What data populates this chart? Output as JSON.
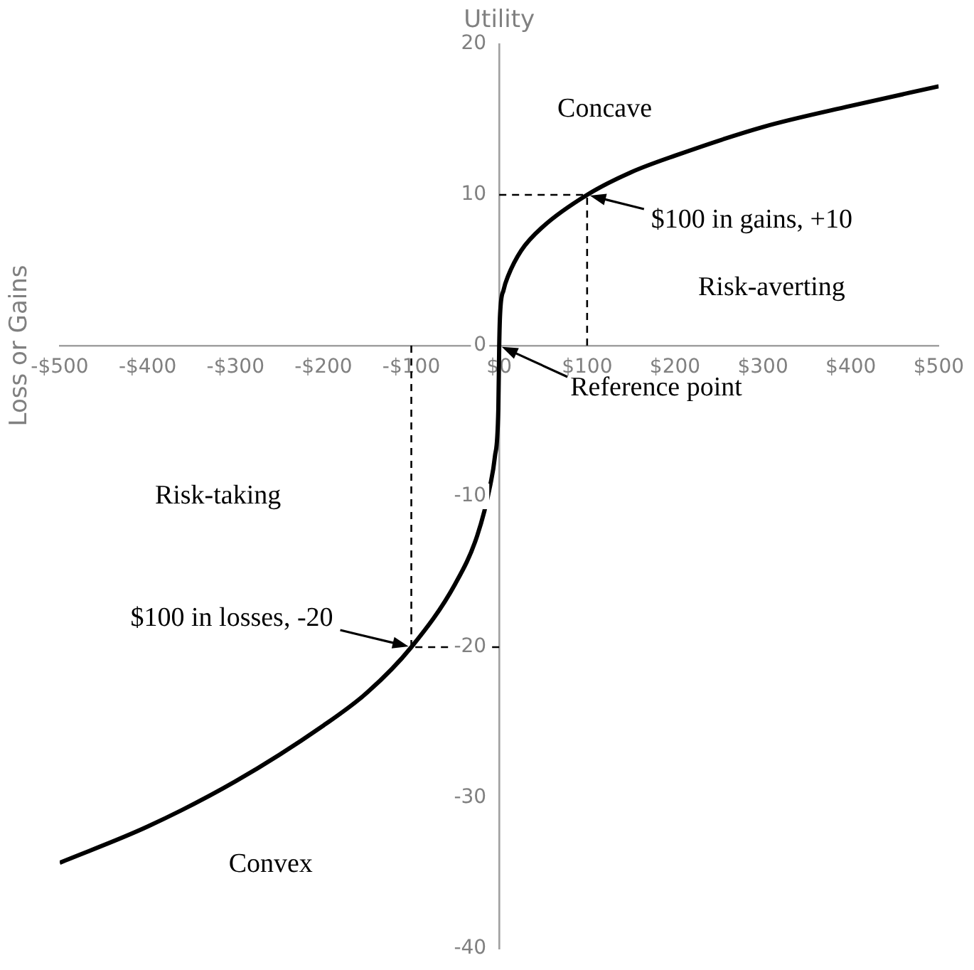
{
  "chart_data": {
    "type": "line",
    "xlabel": "Utility",
    "ylabel": "Loss or Gains",
    "x": [
      -500,
      -400,
      -300,
      -200,
      -150,
      -100,
      -50,
      -25,
      -10,
      -5,
      -1,
      0,
      1,
      5,
      10,
      25,
      50,
      100,
      150,
      200,
      300,
      400,
      500
    ],
    "series": [
      {
        "color": "#000000",
        "values": [
          -34.3,
          -31.9,
          -28.9,
          -25.2,
          -23,
          -20,
          -15.8,
          -12.6,
          -9.2,
          -7.4,
          -4.2,
          0,
          2.1,
          3.7,
          4.6,
          6.3,
          7.9,
          10,
          11.5,
          12.6,
          14.5,
          15.9,
          17.2
        ]
      }
    ],
    "xlim": [
      -500,
      500
    ],
    "ylim": [
      -40,
      20
    ],
    "xticks": [
      {
        "value": -500,
        "label": "-$500"
      },
      {
        "value": -400,
        "label": "-$400"
      },
      {
        "value": -300,
        "label": "-$300"
      },
      {
        "value": -200,
        "label": "-$200"
      },
      {
        "value": -100,
        "label": "-$100"
      },
      {
        "value": 0,
        "label": "$0"
      },
      {
        "value": 100,
        "label": "$100"
      },
      {
        "value": 200,
        "label": "$200"
      },
      {
        "value": 300,
        "label": "$300"
      },
      {
        "value": 400,
        "label": "$400"
      },
      {
        "value": 500,
        "label": "$500"
      }
    ],
    "yticks": [
      -40,
      -30,
      -20,
      -10,
      0,
      10,
      20
    ],
    "annotations": [
      "Concave",
      {
        "text": "$100 in gains, +10",
        "x": 100,
        "y": 10
      },
      "Risk-averting",
      {
        "text": "Reference point",
        "x": 0,
        "y": 0
      },
      "Risk-taking",
      {
        "text": "$100 in losses, -20",
        "x": -100,
        "y": -20
      },
      "Convex"
    ],
    "grid": false,
    "legend": false,
    "marker": "none",
    "line_style": "solid"
  }
}
